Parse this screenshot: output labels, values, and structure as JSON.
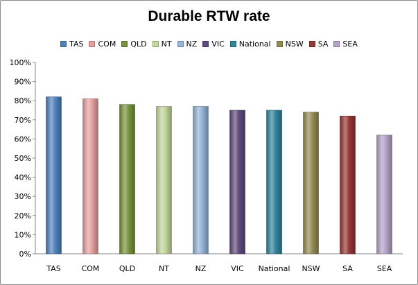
{
  "chart_data": {
    "type": "bar",
    "title": "Durable RTW rate",
    "xlabel": "",
    "ylabel": "",
    "categories": [
      "TAS",
      "COM",
      "QLD",
      "NT",
      "NZ",
      "VIC",
      "National",
      "NSW",
      "SA",
      "SEA"
    ],
    "values": [
      0.82,
      0.81,
      0.78,
      0.77,
      0.77,
      0.75,
      0.75,
      0.74,
      0.72,
      0.62
    ],
    "colors": [
      "#4f81bd",
      "#e6a0a0",
      "#77933c",
      "#c3d69b",
      "#95b3d7",
      "#604a7b",
      "#31849b",
      "#948a54",
      "#953735",
      "#b3a2c7"
    ],
    "ylim": [
      0,
      1
    ],
    "y_ticks": [
      "0%",
      "10%",
      "20%",
      "30%",
      "40%",
      "50%",
      "60%",
      "70%",
      "80%",
      "90%",
      "100%"
    ],
    "legend_position": "top",
    "grid": false
  }
}
